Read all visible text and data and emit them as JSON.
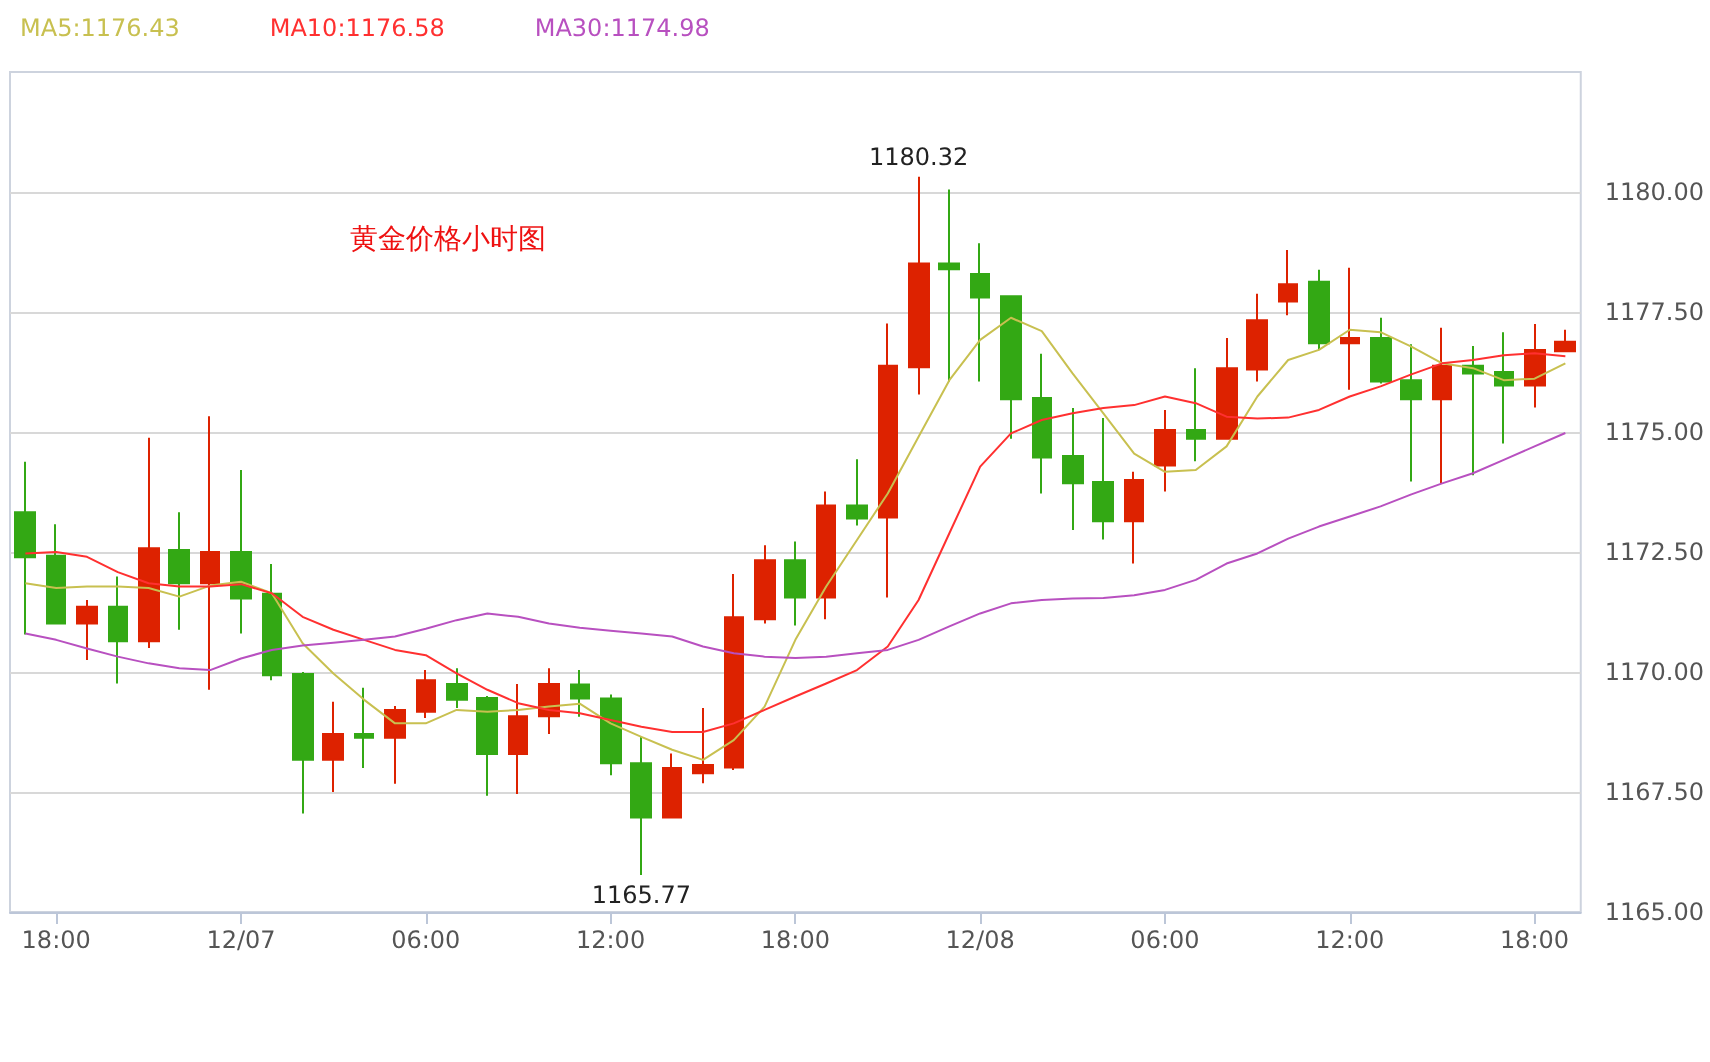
{
  "chart_data": {
    "type": "candlestick",
    "title": "黄金价格小时图",
    "categories": [
      null,
      "18:00",
      null,
      null,
      null,
      null,
      null,
      "12/07",
      null,
      null,
      null,
      null,
      null,
      "06:00",
      null,
      null,
      null,
      null,
      null,
      "12:00",
      null,
      null,
      null,
      null,
      null,
      "18:00",
      null,
      null,
      null,
      null,
      null,
      "12/08",
      null,
      null,
      null,
      null,
      null,
      "06:00",
      null,
      null,
      null,
      null,
      null,
      "12:00",
      null,
      null,
      null,
      null,
      null,
      "18:00",
      null
    ],
    "ohlc": [
      [
        1173.33,
        1174.38,
        1170.78,
        1172.39
      ],
      [
        1172.42,
        1173.08,
        1171.0,
        1171.01
      ],
      [
        1171.01,
        1171.5,
        1170.25,
        1171.36
      ],
      [
        1171.36,
        1171.99,
        1169.76,
        1170.64
      ],
      [
        1170.64,
        1174.88,
        1170.5,
        1172.58
      ],
      [
        1172.54,
        1173.33,
        1170.88,
        1171.85
      ],
      [
        1171.85,
        1175.33,
        1169.63,
        1172.5
      ],
      [
        1172.5,
        1174.21,
        1170.8,
        1171.53
      ],
      [
        1171.63,
        1172.25,
        1169.83,
        1169.93
      ],
      [
        1169.96,
        1170.0,
        1167.05,
        1168.17
      ],
      [
        1168.17,
        1169.38,
        1167.5,
        1168.71
      ],
      [
        1168.71,
        1169.67,
        1168.0,
        1168.63
      ],
      [
        1168.63,
        1169.29,
        1167.67,
        1169.21
      ],
      [
        1169.17,
        1170.04,
        1169.04,
        1169.83
      ],
      [
        1169.75,
        1170.08,
        1169.25,
        1169.42
      ],
      [
        1169.46,
        1169.5,
        1167.42,
        1168.29
      ],
      [
        1168.29,
        1169.75,
        1167.46,
        1169.08
      ],
      [
        1169.08,
        1170.08,
        1168.71,
        1169.75
      ],
      [
        1169.74,
        1170.04,
        1169.07,
        1169.45
      ],
      [
        1169.45,
        1169.53,
        1167.85,
        1168.1
      ],
      [
        1168.1,
        1168.65,
        1165.77,
        1166.97
      ],
      [
        1166.97,
        1168.3,
        1166.97,
        1168.0
      ],
      [
        1167.89,
        1169.25,
        1167.68,
        1168.06
      ],
      [
        1168.01,
        1172.04,
        1167.96,
        1171.14
      ],
      [
        1171.1,
        1172.64,
        1171.01,
        1172.33
      ],
      [
        1172.33,
        1172.72,
        1170.97,
        1171.55
      ],
      [
        1171.55,
        1173.76,
        1171.1,
        1173.47
      ],
      [
        1173.47,
        1174.43,
        1173.05,
        1173.2
      ],
      [
        1173.22,
        1177.26,
        1171.55,
        1176.38
      ],
      [
        1176.35,
        1180.32,
        1175.78,
        1178.51
      ],
      [
        1178.51,
        1180.05,
        1176.05,
        1178.39
      ],
      [
        1178.29,
        1178.93,
        1176.05,
        1177.8
      ],
      [
        1177.83,
        1177.83,
        1174.86,
        1175.68
      ],
      [
        1175.71,
        1176.63,
        1173.72,
        1174.47
      ],
      [
        1174.5,
        1175.5,
        1172.96,
        1173.93
      ],
      [
        1173.96,
        1175.29,
        1172.76,
        1173.14
      ],
      [
        1173.14,
        1174.17,
        1172.26,
        1174.0
      ],
      [
        1174.3,
        1175.46,
        1173.76,
        1175.04
      ],
      [
        1175.04,
        1176.33,
        1174.39,
        1174.86
      ],
      [
        1174.86,
        1176.96,
        1174.86,
        1176.33
      ],
      [
        1176.3,
        1177.88,
        1176.05,
        1177.33
      ],
      [
        1177.72,
        1178.79,
        1177.43,
        1178.08
      ],
      [
        1178.13,
        1178.38,
        1176.71,
        1176.85
      ],
      [
        1176.85,
        1178.42,
        1175.88,
        1176.96
      ],
      [
        1176.96,
        1177.38,
        1176.01,
        1176.05
      ],
      [
        1176.08,
        1176.83,
        1173.97,
        1175.68
      ],
      [
        1175.68,
        1177.17,
        1173.93,
        1176.38
      ],
      [
        1176.38,
        1176.79,
        1174.1,
        1176.22
      ],
      [
        1176.25,
        1177.08,
        1174.76,
        1175.97
      ],
      [
        1175.97,
        1177.25,
        1175.51,
        1176.71
      ],
      [
        1176.68,
        1177.13,
        1176.68,
        1176.88
      ]
    ],
    "colors": [
      "#33a814",
      "#33a814",
      "#dd2200",
      "#33a814",
      "#dd2200",
      "#33a814",
      "#dd2200",
      "#33a814",
      "#33a814",
      "#33a814",
      "#dd2200",
      "#33a814",
      "#dd2200",
      "#dd2200",
      "#33a814",
      "#33a814",
      "#dd2200",
      "#dd2200",
      "#33a814",
      "#33a814",
      "#33a814",
      "#dd2200",
      "#dd2200",
      "#dd2200",
      "#dd2200",
      "#33a814",
      "#dd2200",
      "#33a814",
      "#dd2200",
      "#dd2200",
      "#33a814",
      "#33a814",
      "#33a814",
      "#33a814",
      "#33a814",
      "#33a814",
      "#dd2200",
      "#dd2200",
      "#33a814",
      "#dd2200",
      "#dd2200",
      "#dd2200",
      "#33a814",
      "#dd2200",
      "#33a814",
      "#33a814",
      "#dd2200",
      "#33a814",
      "#33a814",
      "#dd2200",
      "#dd2200"
    ],
    "series": [
      {
        "type": "line",
        "name": "MA5:1176.43",
        "color": "#c8c050",
        "values": [
          1171.85,
          1171.75,
          1171.78,
          1171.78,
          1171.75,
          1171.57,
          1171.8,
          1171.88,
          1171.64,
          1170.6,
          1169.97,
          1169.42,
          1168.93,
          1168.93,
          1169.21,
          1169.17,
          1169.21,
          1169.28,
          1169.34,
          1168.93,
          1168.65,
          1168.38,
          1168.17,
          1168.58,
          1169.28,
          1170.67,
          1171.78,
          1172.75,
          1173.72,
          1174.9,
          1176.08,
          1176.92,
          1177.38,
          1177.1,
          1176.22,
          1175.39,
          1174.55,
          1174.17,
          1174.21,
          1174.7,
          1175.74,
          1176.5,
          1176.71,
          1177.13,
          1177.08,
          1176.78,
          1176.43,
          1176.33,
          1176.08,
          1176.11,
          1176.43
        ]
      },
      {
        "type": "line",
        "name": "MA10:1176.58",
        "color": "#ff3030",
        "values": [
          1172.47,
          1172.5,
          1172.4,
          1172.08,
          1171.85,
          1171.78,
          1171.78,
          1171.83,
          1171.64,
          1171.15,
          1170.88,
          1170.67,
          1170.46,
          1170.35,
          1169.97,
          1169.63,
          1169.35,
          1169.21,
          1169.14,
          1169.0,
          1168.86,
          1168.75,
          1168.75,
          1168.93,
          1169.21,
          1169.49,
          1169.76,
          1170.04,
          1170.53,
          1171.5,
          1172.89,
          1174.28,
          1174.97,
          1175.25,
          1175.39,
          1175.5,
          1175.56,
          1175.74,
          1175.6,
          1175.32,
          1175.28,
          1175.3,
          1175.46,
          1175.74,
          1175.95,
          1176.2,
          1176.43,
          1176.5,
          1176.6,
          1176.64,
          1176.58
        ]
      },
      {
        "type": "line",
        "name": "MA30:1174.98",
        "color": "#b850c0",
        "values": [
          1170.8,
          1170.67,
          1170.49,
          1170.32,
          1170.18,
          1170.08,
          1170.04,
          1170.28,
          1170.46,
          1170.55,
          1170.61,
          1170.67,
          1170.74,
          1170.9,
          1171.08,
          1171.22,
          1171.15,
          1171.01,
          1170.92,
          1170.86,
          1170.8,
          1170.74,
          1170.53,
          1170.39,
          1170.32,
          1170.29,
          1170.32,
          1170.39,
          1170.46,
          1170.67,
          1170.95,
          1171.22,
          1171.43,
          1171.5,
          1171.53,
          1171.54,
          1171.6,
          1171.71,
          1171.92,
          1172.26,
          1172.47,
          1172.78,
          1173.03,
          1173.24,
          1173.45,
          1173.7,
          1173.93,
          1174.14,
          1174.42,
          1174.7,
          1174.98
        ]
      }
    ],
    "ylim": [
      1165,
      1182.5
    ],
    "yticks": [
      {
        "value": 1165,
        "label": "1165.00"
      },
      {
        "value": 1167.5,
        "label": "1167.50"
      },
      {
        "value": 1170,
        "label": "1170.00"
      },
      {
        "value": 1172.5,
        "label": "1172.50"
      },
      {
        "value": 1175,
        "label": "1175.00"
      },
      {
        "value": 1177.5,
        "label": "1177.50"
      },
      {
        "value": 1180,
        "label": "1180.00"
      }
    ],
    "grid": "y",
    "legend": "top left",
    "marker": "none",
    "annotations": [
      {
        "text": "1180.32",
        "y": 1180.32
      },
      {
        "text": "1165.77",
        "y": 1165.77
      }
    ]
  }
}
